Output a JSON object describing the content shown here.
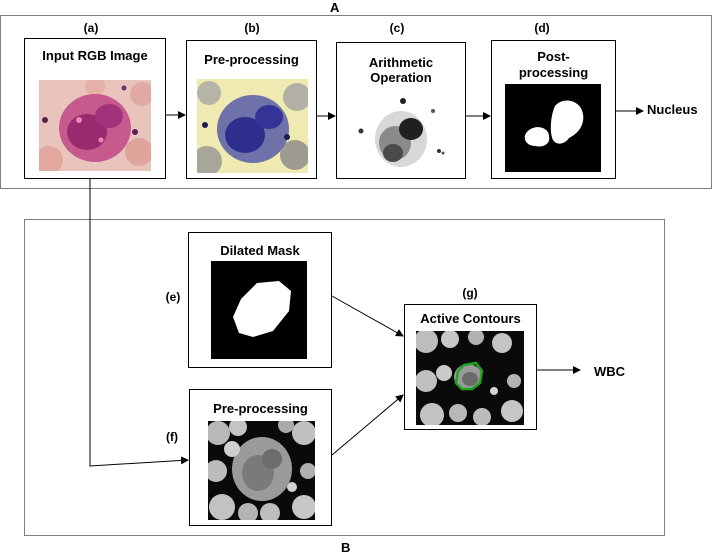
{
  "section_a": {
    "label": "A"
  },
  "section_b": {
    "label": "B"
  },
  "steps": {
    "a": {
      "letter": "(a)",
      "title": "Input RGB Image"
    },
    "b": {
      "letter": "(b)",
      "title": "Pre-processing"
    },
    "c": {
      "letter": "(c)",
      "title_line1": "Arithmetic",
      "title_line2": "Operation"
    },
    "d": {
      "letter": "(d)",
      "title_line1": "Post-",
      "title_line2": "processing"
    },
    "e": {
      "letter": "(e)",
      "title": "Dilated Mask"
    },
    "f": {
      "letter": "(f)",
      "title": "Pre-processing"
    },
    "g": {
      "letter": "(g)",
      "title": "Active Contours"
    }
  },
  "outputs": {
    "nucleus": "Nucleus",
    "wbc": "WBC"
  },
  "colors": {
    "outer_border": "#7f7f7f",
    "box_border": "#000000",
    "contour_green": "#1fa31f"
  }
}
